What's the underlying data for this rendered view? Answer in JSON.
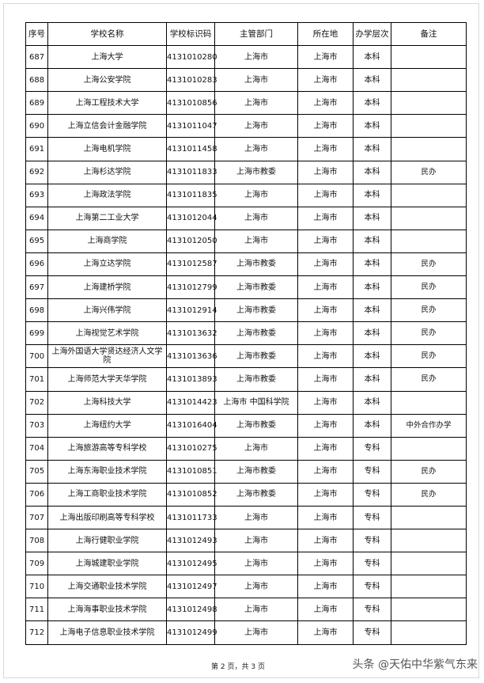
{
  "headers": [
    "序号",
    "学校名称",
    "学校标识码",
    "主管部门",
    "所在地",
    "办学层次",
    "备注"
  ],
  "rows": [
    [
      "687",
      "上海大学",
      "4131010280",
      "上海市",
      "上海市",
      "本科",
      ""
    ],
    [
      "688",
      "上海公安学院",
      "4131010283",
      "上海市",
      "上海市",
      "本科",
      ""
    ],
    [
      "689",
      "上海工程技术大学",
      "4131010856",
      "上海市",
      "上海市",
      "本科",
      ""
    ],
    [
      "690",
      "上海立信会计金融学院",
      "4131011047",
      "上海市",
      "上海市",
      "本科",
      ""
    ],
    [
      "691",
      "上海电机学院",
      "4131011458",
      "上海市",
      "上海市",
      "本科",
      ""
    ],
    [
      "692",
      "上海杉达学院",
      "4131011833",
      "上海市教委",
      "上海市",
      "本科",
      "民办"
    ],
    [
      "693",
      "上海政法学院",
      "4131011835",
      "上海市",
      "上海市",
      "本科",
      ""
    ],
    [
      "694",
      "上海第二工业大学",
      "4131012044",
      "上海市",
      "上海市",
      "本科",
      ""
    ],
    [
      "695",
      "上海商学院",
      "4131012050",
      "上海市",
      "上海市",
      "本科",
      ""
    ],
    [
      "696",
      "上海立达学院",
      "4131012587",
      "上海市教委",
      "上海市",
      "本科",
      "民办"
    ],
    [
      "697",
      "上海建桥学院",
      "4131012799",
      "上海市教委",
      "上海市",
      "本科",
      "民办"
    ],
    [
      "698",
      "上海兴伟学院",
      "4131012914",
      "上海市教委",
      "上海市",
      "本科",
      "民办"
    ],
    [
      "699",
      "上海视觉艺术学院",
      "4131013632",
      "上海市教委",
      "上海市",
      "本科",
      "民办"
    ],
    [
      "700",
      "上海外国语大学贤达经济人文学院",
      "4131013636",
      "上海市教委",
      "上海市",
      "本科",
      "民办"
    ],
    [
      "701",
      "上海师范大学天华学院",
      "4131013893",
      "上海市教委",
      "上海市",
      "本科",
      "民办"
    ],
    [
      "702",
      "上海科技大学",
      "4131014423",
      "上海市 中国科学院",
      "上海市",
      "本科",
      ""
    ],
    [
      "703",
      "上海纽约大学",
      "4131016404",
      "上海市教委",
      "上海市",
      "本科",
      "中外合作办学"
    ],
    [
      "704",
      "上海旅游高等专科学校",
      "4131010275",
      "上海市",
      "上海市",
      "专科",
      ""
    ],
    [
      "705",
      "上海东海职业技术学院",
      "4131010851",
      "上海市教委",
      "上海市",
      "专科",
      "民办"
    ],
    [
      "706",
      "上海工商职业技术学院",
      "4131010852",
      "上海市教委",
      "上海市",
      "专科",
      "民办"
    ],
    [
      "707",
      "上海出版印刷高等专科学校",
      "4131011733",
      "上海市",
      "上海市",
      "专科",
      ""
    ],
    [
      "708",
      "上海行健职业学院",
      "4131012493",
      "上海市",
      "上海市",
      "专科",
      ""
    ],
    [
      "709",
      "上海城建职业学院",
      "4131012495",
      "上海市",
      "上海市",
      "专科",
      ""
    ],
    [
      "710",
      "上海交通职业技术学院",
      "4131012497",
      "上海市",
      "上海市",
      "专科",
      ""
    ],
    [
      "711",
      "上海海事职业技术学院",
      "4131012498",
      "上海市",
      "上海市",
      "专科",
      ""
    ],
    [
      "712",
      "上海电子信息职业技术学院",
      "4131012499",
      "上海市",
      "上海市",
      "专科",
      ""
    ]
  ],
  "footer": "第 2 页，共 3 页",
  "watermark": "头条 @天佑中华紫气东来"
}
